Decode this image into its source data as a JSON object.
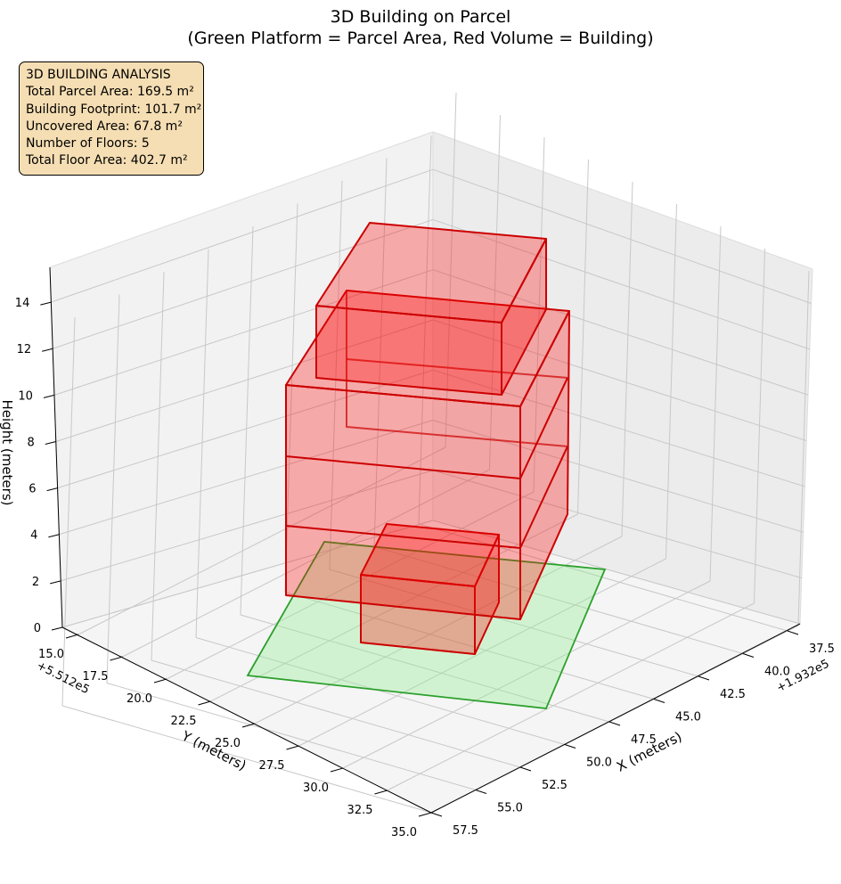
{
  "chart_data": {
    "type": "3d-box",
    "title_line1": "3D Building on Parcel",
    "title_line2": "(Green Platform = Parcel Area, Red Volume = Building)",
    "xlabel": "X (meters)",
    "ylabel": "Y (meters)",
    "zlabel": "Height (meters)",
    "x_offset": "+1.932e5",
    "y_offset": "+5.512e5",
    "x_ticks": [
      "37.5",
      "40.0",
      "42.5",
      "45.0",
      "47.5",
      "50.0",
      "52.5",
      "55.0",
      "57.5"
    ],
    "y_ticks": [
      "15.0",
      "17.5",
      "20.0",
      "22.5",
      "25.0",
      "27.5",
      "30.0",
      "32.5",
      "35.0"
    ],
    "z_ticks": [
      "0",
      "2",
      "4",
      "6",
      "8",
      "10",
      "12",
      "14"
    ],
    "parcel_color": "#90ee90",
    "parcel_edge_color": "#2ca02c",
    "building_color": "#ff0000",
    "building_edge_color": "#cc0000"
  },
  "info": {
    "title": "3D BUILDING ANALYSIS",
    "total_parcel_area": "Total Parcel Area: 169.5 m²",
    "building_footprint": "Building Footprint: 101.7 m²",
    "uncovered_area": "Uncovered Area: 67.8 m²",
    "floors": "Number of Floors: 5",
    "total_floor_area": "Total Floor Area: 402.7 m²"
  }
}
